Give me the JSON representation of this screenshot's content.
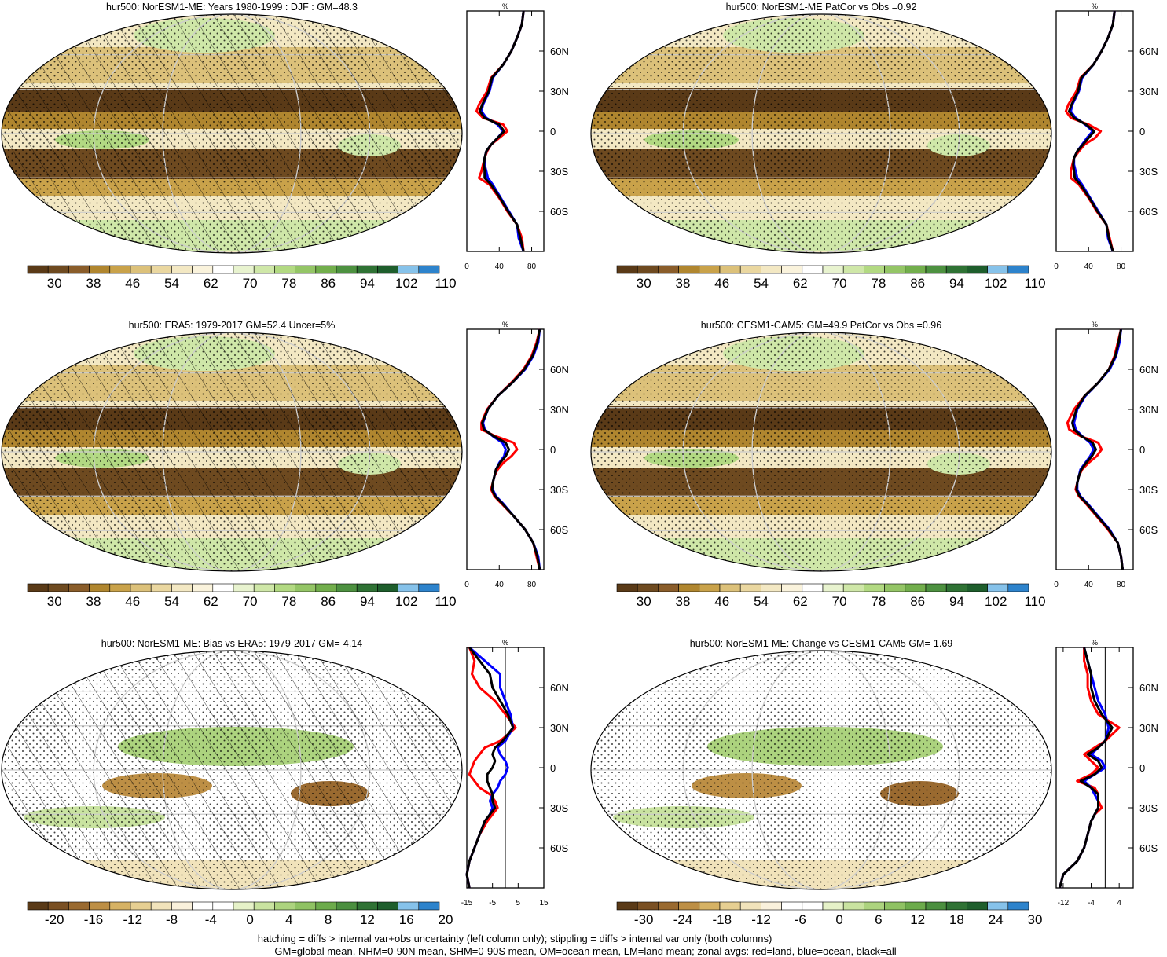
{
  "palette": {
    "abs": [
      "#5a3a17",
      "#6e4a20",
      "#8a5d2a",
      "#b0862f",
      "#c9a24a",
      "#dcc17a",
      "#ead7a0",
      "#f3e8c3",
      "#faf3dc",
      "#ffffff",
      "#e8f3cf",
      "#cfe7a8",
      "#b2d982",
      "#94c566",
      "#72ae4c",
      "#4d9140",
      "#2f7234",
      "#1e5e2c",
      "#86c2ea",
      "#2d83cc"
    ],
    "diff": [
      "#5a3a17",
      "#7a5023",
      "#9a6a30",
      "#bd8f45",
      "#d6b264",
      "#e6cf92",
      "#f1e3bb",
      "#faf1dc",
      "#ffffff",
      "#ffffff",
      "#e6f2c8",
      "#c9e3a0",
      "#acd37e",
      "#8fc263",
      "#6cab4b",
      "#4b8f3f",
      "#2f7234",
      "#1e5e2c",
      "#86c2ea",
      "#2d83cc"
    ],
    "zonal_colors": {
      "land": "#ff0000",
      "ocean": "#0000ff",
      "all": "#000000"
    }
  },
  "lat_labels": [
    "60N",
    "30N",
    "0",
    "30S",
    "60S"
  ],
  "chart_data": [
    {
      "type": "heatmap",
      "title": "hur500: NorESM1-ME: Years 1980-1999 : DJF : GM=48.3",
      "colorbar": {
        "labels": [
          "30",
          "38",
          "46",
          "54",
          "62",
          "70",
          "78",
          "86",
          "94",
          "102",
          "110"
        ],
        "palette": "abs"
      },
      "hatching": true,
      "stippling": true,
      "zonal_avg": {
        "unit": "%",
        "xlim": [
          0,
          95
        ],
        "xticks": [
          "0",
          "40",
          "80"
        ],
        "lat": [
          90,
          80,
          70,
          60,
          50,
          40,
          30,
          20,
          15,
          10,
          5,
          0,
          -5,
          -10,
          -15,
          -20,
          -25,
          -30,
          -35,
          -40,
          -50,
          -60,
          -70,
          -80,
          -90
        ],
        "land": [
          70,
          68,
          62,
          55,
          45,
          30,
          25,
          15,
          12,
          20,
          45,
          50,
          40,
          30,
          25,
          22,
          20,
          18,
          15,
          28,
          40,
          50,
          62,
          68,
          70
        ],
        "ocean": [
          70,
          68,
          62,
          55,
          45,
          32,
          28,
          20,
          18,
          24,
          38,
          45,
          38,
          30,
          24,
          22,
          22,
          24,
          26,
          32,
          42,
          52,
          62,
          64,
          70
        ],
        "all": [
          70,
          68,
          62,
          55,
          45,
          31,
          27,
          19,
          16,
          22,
          40,
          46,
          38,
          30,
          24,
          22,
          21,
          22,
          22,
          30,
          41,
          51,
          62,
          66,
          70
        ]
      }
    },
    {
      "type": "heatmap",
      "title": "hur500: NorESM1-ME PatCor vs Obs =0.92",
      "colorbar": {
        "labels": [
          "30",
          "38",
          "46",
          "54",
          "62",
          "70",
          "78",
          "86",
          "94",
          "102",
          "110"
        ],
        "palette": "abs"
      },
      "hatching": false,
      "stippling": true,
      "zonal_avg": {
        "unit": "%",
        "xlim": [
          0,
          95
        ],
        "xticks": [
          "0",
          "40",
          "80"
        ],
        "lat": [
          90,
          80,
          70,
          60,
          50,
          40,
          30,
          20,
          15,
          10,
          5,
          0,
          -5,
          -10,
          -15,
          -20,
          -25,
          -30,
          -35,
          -40,
          -50,
          -60,
          -70,
          -80,
          -90
        ],
        "land": [
          72,
          70,
          64,
          56,
          46,
          30,
          25,
          15,
          12,
          18,
          40,
          55,
          48,
          35,
          28,
          22,
          20,
          18,
          18,
          28,
          40,
          50,
          62,
          66,
          70
        ],
        "ocean": [
          72,
          70,
          64,
          56,
          46,
          32,
          28,
          20,
          18,
          24,
          36,
          45,
          38,
          32,
          26,
          22,
          22,
          24,
          26,
          32,
          42,
          52,
          62,
          64,
          70
        ],
        "all": [
          72,
          70,
          64,
          56,
          46,
          31,
          27,
          19,
          16,
          22,
          37,
          47,
          40,
          33,
          26,
          22,
          21,
          22,
          23,
          30,
          41,
          51,
          62,
          65,
          70
        ]
      }
    },
    {
      "type": "heatmap",
      "title": "hur500: ERA5: 1979-2017 GM=52.4 Uncer=5%",
      "colorbar": {
        "labels": [
          "30",
          "38",
          "46",
          "54",
          "62",
          "70",
          "78",
          "86",
          "94",
          "102",
          "110"
        ],
        "palette": "abs"
      },
      "hatching": true,
      "stippling": true,
      "zonal_avg": {
        "unit": "%",
        "xlim": [
          0,
          95
        ],
        "xticks": [
          "0",
          "40",
          "80"
        ],
        "lat": [
          90,
          80,
          70,
          60,
          50,
          40,
          30,
          20,
          15,
          10,
          5,
          0,
          -5,
          -10,
          -15,
          -20,
          -25,
          -30,
          -35,
          -40,
          -50,
          -60,
          -70,
          -80,
          -90
        ],
        "land": [
          90,
          86,
          80,
          70,
          55,
          38,
          25,
          18,
          18,
          35,
          58,
          62,
          55,
          45,
          38,
          34,
          32,
          30,
          34,
          42,
          58,
          72,
          82,
          86,
          90
        ],
        "ocean": [
          90,
          88,
          82,
          72,
          56,
          38,
          26,
          20,
          22,
          32,
          44,
          48,
          46,
          40,
          36,
          34,
          32,
          32,
          36,
          44,
          58,
          72,
          82,
          88,
          90
        ],
        "all": [
          90,
          87,
          81,
          71,
          56,
          38,
          26,
          19,
          21,
          33,
          48,
          52,
          48,
          41,
          36,
          34,
          32,
          31,
          35,
          43,
          58,
          72,
          82,
          87,
          90
        ]
      }
    },
    {
      "type": "heatmap",
      "title": "hur500: CESM1-CAM5: GM=49.9 PatCor vs Obs =0.96",
      "colorbar": {
        "labels": [
          "30",
          "38",
          "46",
          "54",
          "62",
          "70",
          "78",
          "86",
          "94",
          "102",
          "110"
        ],
        "palette": "abs"
      },
      "hatching": false,
      "stippling": true,
      "zonal_avg": {
        "unit": "%",
        "xlim": [
          0,
          95
        ],
        "xticks": [
          "0",
          "40",
          "80"
        ],
        "lat": [
          90,
          80,
          70,
          60,
          50,
          40,
          30,
          20,
          15,
          10,
          5,
          0,
          -5,
          -10,
          -15,
          -20,
          -25,
          -30,
          -35,
          -40,
          -50,
          -60,
          -70,
          -80,
          -90
        ],
        "land": [
          80,
          76,
          72,
          65,
          52,
          35,
          22,
          14,
          16,
          30,
          52,
          56,
          50,
          40,
          32,
          28,
          26,
          24,
          28,
          36,
          50,
          64,
          76,
          80,
          82
        ],
        "ocean": [
          80,
          78,
          74,
          66,
          52,
          36,
          26,
          22,
          24,
          32,
          42,
          46,
          42,
          36,
          30,
          28,
          26,
          26,
          30,
          38,
          52,
          66,
          76,
          80,
          82
        ],
        "all": [
          80,
          77,
          73,
          65,
          52,
          35,
          25,
          20,
          22,
          31,
          45,
          49,
          44,
          37,
          31,
          28,
          26,
          25,
          29,
          37,
          51,
          65,
          76,
          80,
          82
        ]
      }
    },
    {
      "type": "heatmap",
      "title": "hur500: NorESM1-ME: Bias vs ERA5: 1979-2017 GM=-4.14",
      "colorbar": {
        "labels": [
          "-20",
          "-16",
          "-12",
          "-8",
          "-4",
          "0",
          "4",
          "8",
          "12",
          "16",
          "20"
        ],
        "palette": "diff"
      },
      "hatching": true,
      "stippling": true,
      "zonal_avg": {
        "unit": "%",
        "xlim": [
          -15,
          15
        ],
        "xticks": [
          "-15",
          "-5",
          "5",
          "15"
        ],
        "lat": [
          90,
          80,
          70,
          60,
          50,
          40,
          30,
          20,
          15,
          10,
          5,
          0,
          -5,
          -10,
          -15,
          -20,
          -25,
          -30,
          -35,
          -40,
          -50,
          -60,
          -70,
          -80,
          -90
        ],
        "land": [
          -14,
          -12,
          -13,
          -10,
          -4,
          0,
          4,
          -2,
          -8,
          -10,
          -12,
          -13,
          -14,
          -12,
          -10,
          -6,
          -4,
          -3,
          -5,
          -7,
          -10,
          -12,
          -14,
          -15,
          -14
        ],
        "ocean": [
          -14,
          -8,
          -2,
          -2,
          0,
          2,
          3,
          0,
          -3,
          -2,
          0,
          1,
          0,
          -2,
          -3,
          -5,
          -6,
          -5,
          -6,
          -8,
          -10,
          -12,
          -14,
          -15,
          -14
        ],
        "all": [
          -14,
          -10,
          -6,
          -5,
          -2,
          1,
          3,
          -1,
          -4,
          -5,
          -4,
          -5,
          -7,
          -7,
          -6,
          -5,
          -5,
          -4,
          -6,
          -8,
          -10,
          -12,
          -14,
          -15,
          -14
        ]
      }
    },
    {
      "type": "heatmap",
      "title": "hur500: NorESM1-ME: Change vs CESM1-CAM5 GM=-1.69",
      "colorbar": {
        "labels": [
          "-30",
          "-24",
          "-18",
          "-12",
          "-6",
          "0",
          "6",
          "12",
          "18",
          "24",
          "30"
        ],
        "palette": "diff"
      },
      "hatching": false,
      "stippling": true,
      "zonal_avg": {
        "unit": "%",
        "xlim": [
          -14,
          8
        ],
        "xticks": [
          "-12",
          "-4",
          "4"
        ],
        "lat": [
          90,
          80,
          70,
          60,
          50,
          40,
          30,
          20,
          15,
          10,
          5,
          0,
          -5,
          -10,
          -15,
          -20,
          -25,
          -30,
          -35,
          -40,
          -50,
          -60,
          -70,
          -80,
          -90
        ],
        "land": [
          -6,
          -6,
          -5,
          -5,
          -4,
          -2,
          4,
          0,
          -3,
          -6,
          -4,
          -2,
          -4,
          -8,
          -3,
          -2,
          -2,
          -1,
          -3,
          -4,
          -5,
          -6,
          -8,
          -12,
          -13
        ],
        "ocean": [
          -6,
          -5,
          -4,
          -3,
          -2,
          0,
          1,
          0,
          -2,
          -4,
          -1,
          0,
          -3,
          -6,
          -4,
          -3,
          -2,
          -2,
          -3,
          -4,
          -5,
          -6,
          -8,
          -12,
          -13
        ],
        "all": [
          -6,
          -5,
          -4,
          -4,
          -3,
          -1,
          2,
          0,
          -2,
          -5,
          -2,
          -1,
          -3,
          -7,
          -4,
          -2,
          -2,
          -2,
          -3,
          -4,
          -5,
          -6,
          -8,
          -12,
          -13
        ]
      }
    }
  ],
  "footer": {
    "line1": "hatching = diffs > internal var+obs uncertainty (left column only); stippling = diffs > internal var only (both columns)",
    "line2": "GM=global mean, NHM=0-90N mean, SHM=0-90S mean, OM=ocean mean, LM=land mean; zonal avgs: red=land, blue=ocean, black=all"
  }
}
